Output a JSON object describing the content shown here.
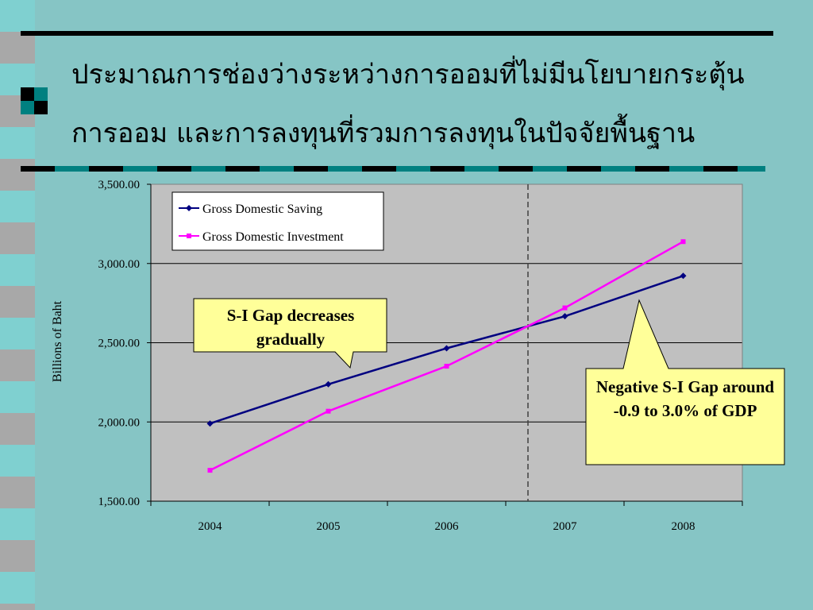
{
  "slide": {
    "title_lines": [
      "ประมาณการช่องว่างระหว่างการออมที่ไม่มีนโยบายกระตุ้น",
      "การออม และการลงทุนที่รวมการลงทุนในปัจจัยพื้นฐาน"
    ]
  },
  "colors": {
    "background": "#86C5C5",
    "plot_area": "#C0C0C0",
    "saving_line": "#000080",
    "investment_line": "#FF00FF",
    "callout_fill": "#FFFF99"
  },
  "callouts": [
    {
      "name": "gap-decreases-callout",
      "text": "S-I Gap decreases gradually"
    },
    {
      "name": "negative-gap-callout",
      "text": "Negative S-I Gap around -0.9 to 3.0% of GDP"
    }
  ],
  "chart_data": {
    "type": "line",
    "categories": [
      "2004",
      "2005",
      "2006",
      "2007",
      "2008"
    ],
    "series": [
      {
        "name": "Gross Domestic Saving",
        "values": [
          1990,
          2238,
          2465,
          2667,
          2922
        ],
        "color": "#000080",
        "marker": "diamond"
      },
      {
        "name": "Gross Domestic Investment",
        "values": [
          1695,
          2068,
          2352,
          2720,
          3138
        ],
        "color": "#FF00FF",
        "marker": "square"
      }
    ],
    "ylabel": "Billions of Baht",
    "xlabel": "",
    "ylim": [
      1500,
      3500
    ],
    "yticks": [
      "1,500.00",
      "2,000.00",
      "2,500.00",
      "3,000.00",
      "3,500.00"
    ],
    "grid": true,
    "legend_position": "top-left",
    "forecast_divider_after": "2006"
  }
}
